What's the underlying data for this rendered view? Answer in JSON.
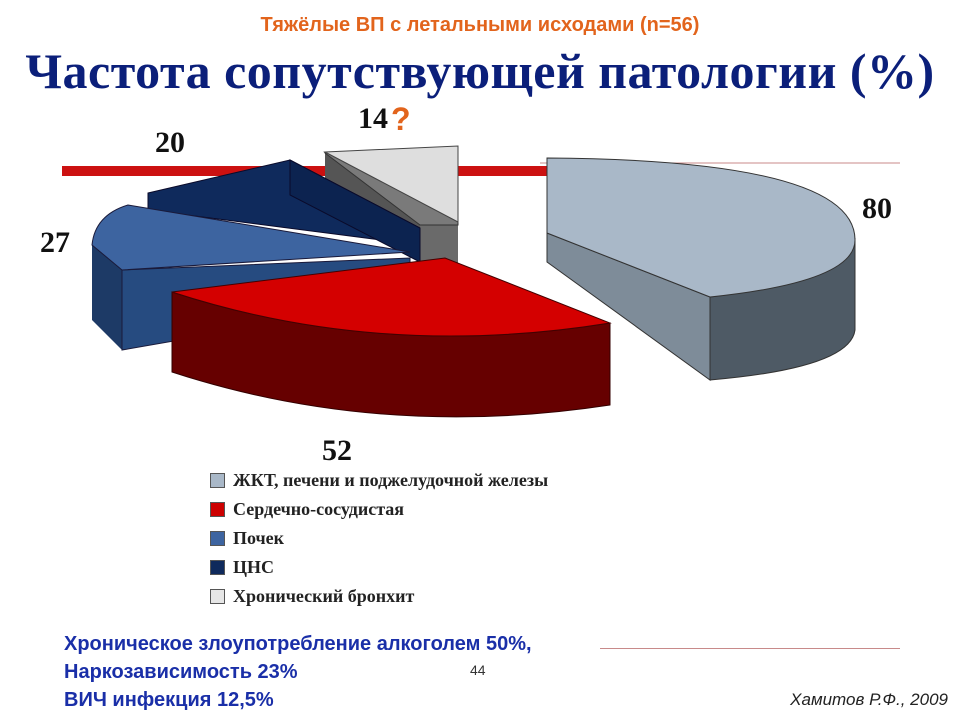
{
  "header": {
    "subtitle": "Тяжёлые ВП с летальными исходами (n=56)",
    "title": "Частота сопутствующей патологии (%)"
  },
  "chart_data": {
    "type": "pie",
    "title": "Частота сопутствующей патологии (%)",
    "series": [
      {
        "name": "ЖКТ, печени и поджелудочной железы",
        "value": 80,
        "label": "80",
        "color": "#a9b8c8"
      },
      {
        "name": "Сердечно-сосудистая",
        "value": 52,
        "label": "52",
        "color": "#cc0000"
      },
      {
        "name": "Почек",
        "value": 27,
        "label": "27",
        "color": "#3d64a0"
      },
      {
        "name": "ЦНС",
        "value": 20,
        "label": "20",
        "color": "#0f2a5c"
      },
      {
        "name": "Хронический бронхит",
        "value": 14,
        "label": "14",
        "color": "#d9d9d9"
      }
    ],
    "unlabeled_slice_color": "#707070",
    "question_mark": "?",
    "question_mark_color": "#e2641c",
    "legend_position": "bottom"
  },
  "notes": {
    "lines": [
      "Хроническое злоупотребление алкоголем 50%,",
      "Наркозависимость 23%",
      "ВИЧ инфекция 12,5%"
    ]
  },
  "footer": {
    "page_number": "44",
    "author": "Хамитов Р.Ф., 2009"
  },
  "colors": {
    "subtitle": "#e2641c",
    "title": "#0b1f7a",
    "notes": "#1a2fa8",
    "accent_bar": "#cc1111"
  }
}
